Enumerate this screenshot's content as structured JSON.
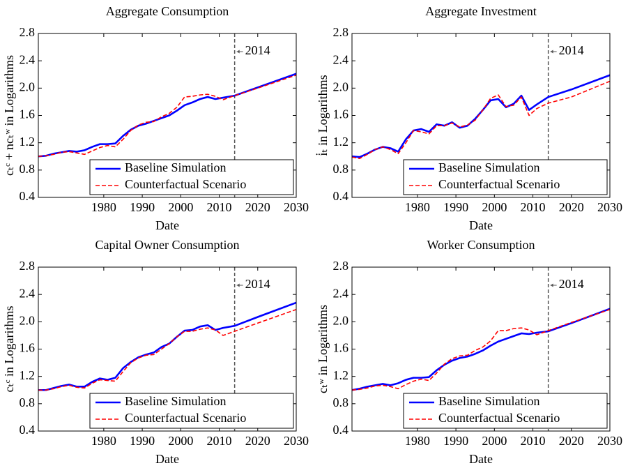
{
  "chart_data": [
    {
      "type": "line",
      "title": "Aggregate Consumption",
      "x_label": "Date",
      "y_label": "cₜᶜ + ncₜʷ in Logarithms",
      "xlim": [
        1963,
        2030
      ],
      "xticks": [
        1980,
        1990,
        2000,
        2010,
        2020,
        2030
      ],
      "ylim": [
        0.4,
        2.8
      ],
      "yticks": [
        0.4,
        0.8,
        1.2,
        1.6,
        {
          "value": 2,
          "label": "2.0"
        },
        2.4,
        2.8
      ],
      "vline_x": 2014,
      "legend": "lower right",
      "x": [
        1963,
        1965,
        1967,
        1969,
        1971,
        1973,
        1975,
        1977,
        1979,
        1981,
        1983,
        1985,
        1987,
        1989,
        1991,
        1993,
        1995,
        1997,
        1999,
        2001,
        2003,
        2005,
        2007,
        2009,
        2011,
        2014,
        2020,
        2030
      ],
      "series": [
        {
          "name": "Baseline Simulation",
          "color": "#0000ff",
          "style": "solid",
          "values": [
            1.0,
            1.01,
            1.04,
            1.06,
            1.08,
            1.07,
            1.09,
            1.14,
            1.18,
            1.18,
            1.19,
            1.3,
            1.39,
            1.45,
            1.48,
            1.52,
            1.56,
            1.6,
            1.67,
            1.75,
            1.79,
            1.84,
            1.87,
            1.84,
            1.86,
            1.89,
            2.01,
            2.21
          ]
        },
        {
          "name": "Counterfactual Scenario",
          "color": "#ff0000",
          "style": "dashed",
          "values": [
            1.0,
            1.01,
            1.03,
            1.06,
            1.07,
            1.05,
            1.03,
            1.08,
            1.13,
            1.16,
            1.14,
            1.25,
            1.38,
            1.46,
            1.5,
            1.51,
            1.58,
            1.63,
            1.72,
            1.87,
            1.88,
            1.9,
            1.91,
            1.88,
            1.83,
            1.89,
            2.0,
            2.19
          ]
        }
      ]
    },
    {
      "type": "line",
      "title": "Aggregate Investment",
      "x_label": "Date",
      "y_label": "i̇ₜ in Logarithms",
      "xlim": [
        1963,
        2030
      ],
      "xticks": [
        1980,
        1990,
        2000,
        2010,
        2020,
        2030
      ],
      "ylim": [
        0.4,
        2.8
      ],
      "yticks": [
        0.4,
        0.8,
        1.2,
        1.6,
        {
          "value": 2,
          "label": "2.0"
        },
        2.4,
        2.8
      ],
      "vline_x": 2014,
      "legend": "lower right",
      "x": [
        1963,
        1965,
        1967,
        1969,
        1971,
        1973,
        1975,
        1977,
        1979,
        1981,
        1983,
        1985,
        1987,
        1989,
        1991,
        1993,
        1995,
        1997,
        1999,
        2001,
        2003,
        2005,
        2007,
        2009,
        2011,
        2014,
        2020,
        2030
      ],
      "series": [
        {
          "name": "Baseline Simulation",
          "color": "#0000ff",
          "style": "solid",
          "values": [
            1.0,
            0.99,
            1.04,
            1.1,
            1.14,
            1.12,
            1.07,
            1.25,
            1.38,
            1.4,
            1.36,
            1.47,
            1.45,
            1.5,
            1.42,
            1.45,
            1.55,
            1.68,
            1.82,
            1.84,
            1.72,
            1.77,
            1.89,
            1.68,
            1.76,
            1.87,
            1.98,
            2.19
          ]
        },
        {
          "name": "Counterfactual Scenario",
          "color": "#ff0000",
          "style": "dashed",
          "values": [
            0.99,
            0.97,
            1.03,
            1.1,
            1.14,
            1.1,
            1.04,
            1.2,
            1.38,
            1.36,
            1.33,
            1.45,
            1.45,
            1.49,
            1.43,
            1.46,
            1.53,
            1.68,
            1.85,
            1.9,
            1.73,
            1.75,
            1.87,
            1.6,
            1.7,
            1.78,
            1.87,
            2.1
          ]
        }
      ]
    },
    {
      "type": "line",
      "title": "Capital Owner Consumption",
      "x_label": "Date",
      "y_label": "cₜᶜ in Logarithms",
      "xlim": [
        1963,
        2030
      ],
      "xticks": [
        1980,
        1990,
        2000,
        2010,
        2020,
        2030
      ],
      "ylim": [
        0.4,
        2.8
      ],
      "yticks": [
        0.4,
        0.8,
        1.2,
        1.6,
        {
          "value": 2,
          "label": "2.0"
        },
        2.4,
        2.8
      ],
      "vline_x": 2014,
      "legend": "lower right",
      "x": [
        1963,
        1965,
        1967,
        1969,
        1971,
        1973,
        1975,
        1977,
        1979,
        1981,
        1983,
        1985,
        1987,
        1989,
        1991,
        1993,
        1995,
        1997,
        1999,
        2001,
        2003,
        2005,
        2007,
        2009,
        2011,
        2014,
        2020,
        2030
      ],
      "series": [
        {
          "name": "Baseline Simulation",
          "color": "#0000ff",
          "style": "solid",
          "values": [
            1.0,
            1.0,
            1.03,
            1.06,
            1.08,
            1.05,
            1.05,
            1.12,
            1.17,
            1.15,
            1.18,
            1.32,
            1.41,
            1.48,
            1.52,
            1.55,
            1.63,
            1.68,
            1.78,
            1.87,
            1.88,
            1.93,
            1.95,
            1.88,
            1.91,
            1.94,
            2.07,
            2.28
          ]
        },
        {
          "name": "Counterfactual Scenario",
          "color": "#ff0000",
          "style": "dashed",
          "values": [
            1.0,
            1.0,
            1.02,
            1.05,
            1.07,
            1.04,
            1.03,
            1.1,
            1.15,
            1.14,
            1.13,
            1.27,
            1.4,
            1.47,
            1.51,
            1.52,
            1.6,
            1.68,
            1.78,
            1.86,
            1.86,
            1.89,
            1.91,
            1.88,
            1.8,
            1.86,
            1.98,
            2.18
          ]
        }
      ]
    },
    {
      "type": "line",
      "title": "Worker Consumption",
      "x_label": "Date",
      "y_label": "cₜʷ in Logarithms",
      "xlim": [
        1963,
        2030
      ],
      "xticks": [
        1980,
        1990,
        2000,
        2010,
        2020,
        2030
      ],
      "ylim": [
        0.4,
        2.8
      ],
      "yticks": [
        0.4,
        0.8,
        1.2,
        1.6,
        {
          "value": 2,
          "label": "2.0"
        },
        2.4,
        2.8
      ],
      "vline_x": 2014,
      "legend": "lower right",
      "x": [
        1963,
        1965,
        1967,
        1969,
        1971,
        1973,
        1975,
        1977,
        1979,
        1981,
        1983,
        1985,
        1987,
        1989,
        1991,
        1993,
        1995,
        1997,
        1999,
        2001,
        2003,
        2005,
        2007,
        2009,
        2011,
        2014,
        2020,
        2030
      ],
      "series": [
        {
          "name": "Baseline Simulation",
          "color": "#0000ff",
          "style": "solid",
          "values": [
            1.0,
            1.02,
            1.05,
            1.07,
            1.09,
            1.07,
            1.1,
            1.15,
            1.18,
            1.18,
            1.19,
            1.29,
            1.37,
            1.43,
            1.47,
            1.49,
            1.53,
            1.58,
            1.65,
            1.71,
            1.75,
            1.79,
            1.83,
            1.82,
            1.84,
            1.86,
            1.98,
            2.19
          ]
        },
        {
          "name": "Counterfactual Scenario",
          "color": "#ff0000",
          "style": "dashed",
          "values": [
            1.0,
            1.01,
            1.03,
            1.06,
            1.07,
            1.05,
            1.02,
            1.08,
            1.13,
            1.16,
            1.14,
            1.25,
            1.38,
            1.46,
            1.5,
            1.51,
            1.58,
            1.63,
            1.72,
            1.87,
            1.87,
            1.9,
            1.91,
            1.88,
            1.81,
            1.87,
            1.99,
            2.18
          ]
        }
      ]
    }
  ]
}
